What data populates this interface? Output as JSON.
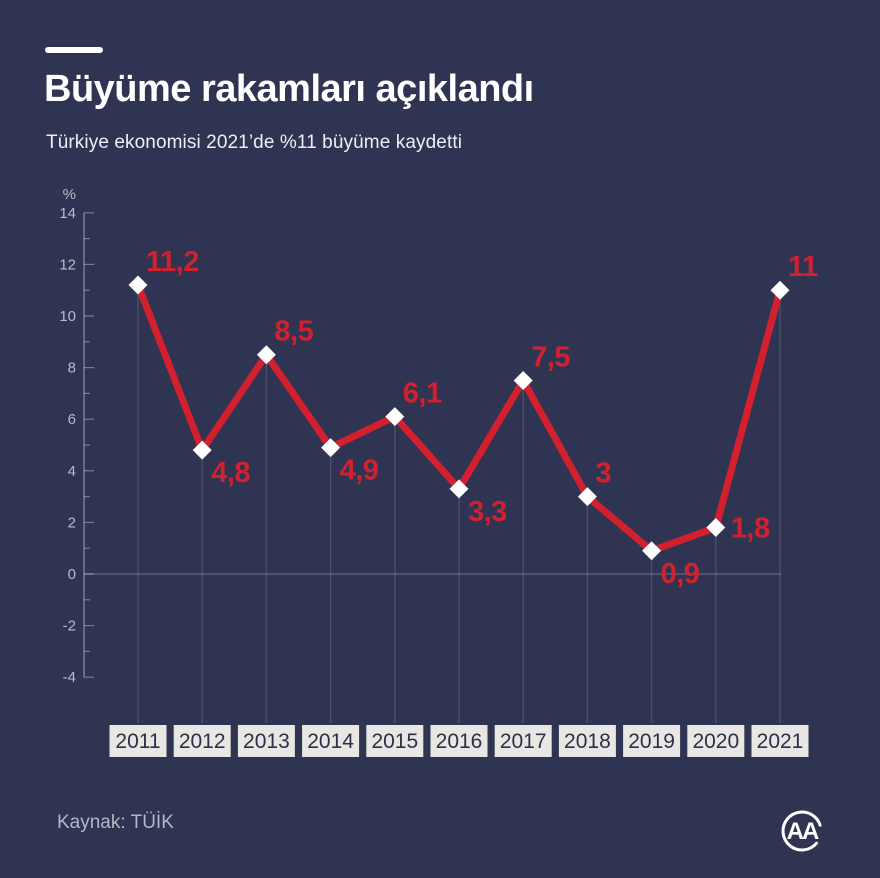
{
  "meta": {
    "background": "#2e3451",
    "accent_red": "#d3202f",
    "year_box_bg": "#e9e7e3",
    "marker_color": "#ffffff"
  },
  "header": {
    "title": "Büyüme rakamları açıklandı",
    "subtitle": "Türkiye ekonomisi 2021’de %11 büyüme kaydetti"
  },
  "chart_data": {
    "type": "line",
    "title": "Büyüme rakamları açıklandı",
    "subtitle": "Türkiye ekonomisi 2021’de %11 büyüme kaydetti",
    "unit_label": "%",
    "categories": [
      "2011",
      "2012",
      "2013",
      "2014",
      "2015",
      "2016",
      "2017",
      "2018",
      "2019",
      "2020",
      "2021"
    ],
    "values": [
      11.2,
      4.8,
      8.5,
      4.9,
      6.1,
      3.3,
      7.5,
      3,
      0.9,
      1.8,
      11
    ],
    "value_labels": [
      "11,2",
      "4,8",
      "8,5",
      "4,9",
      "6,1",
      "3,3",
      "7,5",
      "3",
      "0,9",
      "1,8",
      "11"
    ],
    "label_positions": [
      "above",
      "below",
      "above",
      "below",
      "above",
      "below",
      "above",
      "above",
      "below",
      "side",
      "above"
    ],
    "ylim": [
      -4,
      14
    ],
    "yticks": [
      14,
      12,
      10,
      8,
      6,
      4,
      2,
      0,
      -2,
      -4
    ],
    "ytick_step": 2,
    "grid": "horizontal zero line + vertical drop lines from each point",
    "legend": "none",
    "line_color": "#d3202f",
    "marker": "white-diamond",
    "xlabel": "",
    "ylabel": "%"
  },
  "footer": {
    "source": "Kaynak: TÜİK",
    "logo_text": "AA"
  }
}
